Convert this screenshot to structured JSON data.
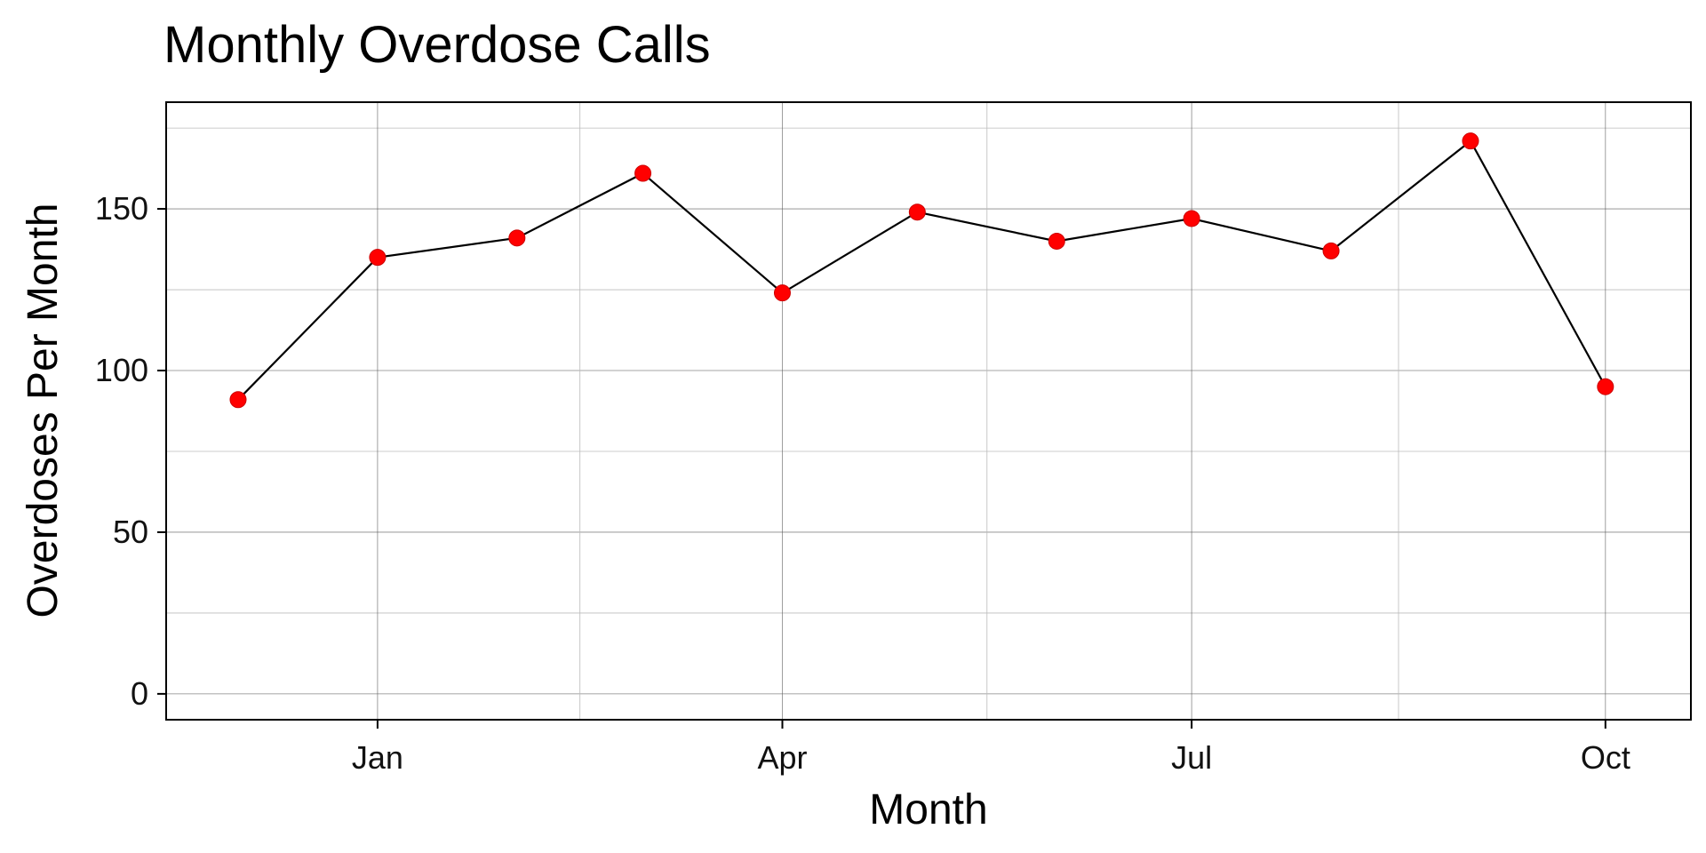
{
  "chart_data": {
    "type": "line",
    "title": "Monthly Overdose Calls",
    "xlabel": "Month",
    "ylabel": "Overdoses Per Month",
    "x_ticks": [
      {
        "label": "Jan",
        "x": "2021-01-01"
      },
      {
        "label": "Apr",
        "x": "2021-04-01"
      },
      {
        "label": "Jul",
        "x": "2021-07-01"
      },
      {
        "label": "Oct",
        "x": "2021-10-01"
      }
    ],
    "y_ticks": [
      0,
      50,
      100,
      150
    ],
    "xlim": [
      "2020-11-15",
      "2021-10-20"
    ],
    "ylim": [
      -8,
      183
    ],
    "grid": true,
    "point_color": "#ff0000",
    "line_color": "#000000",
    "series": [
      {
        "x": [
          "2020-12-01",
          "2021-01-01",
          "2021-02-01",
          "2021-03-01",
          "2021-04-01",
          "2021-05-01",
          "2021-06-01",
          "2021-07-01",
          "2021-08-01",
          "2021-09-01",
          "2021-10-01"
        ],
        "values": [
          91,
          135,
          141,
          161,
          124,
          149,
          140,
          147,
          137,
          171,
          95
        ]
      }
    ]
  }
}
